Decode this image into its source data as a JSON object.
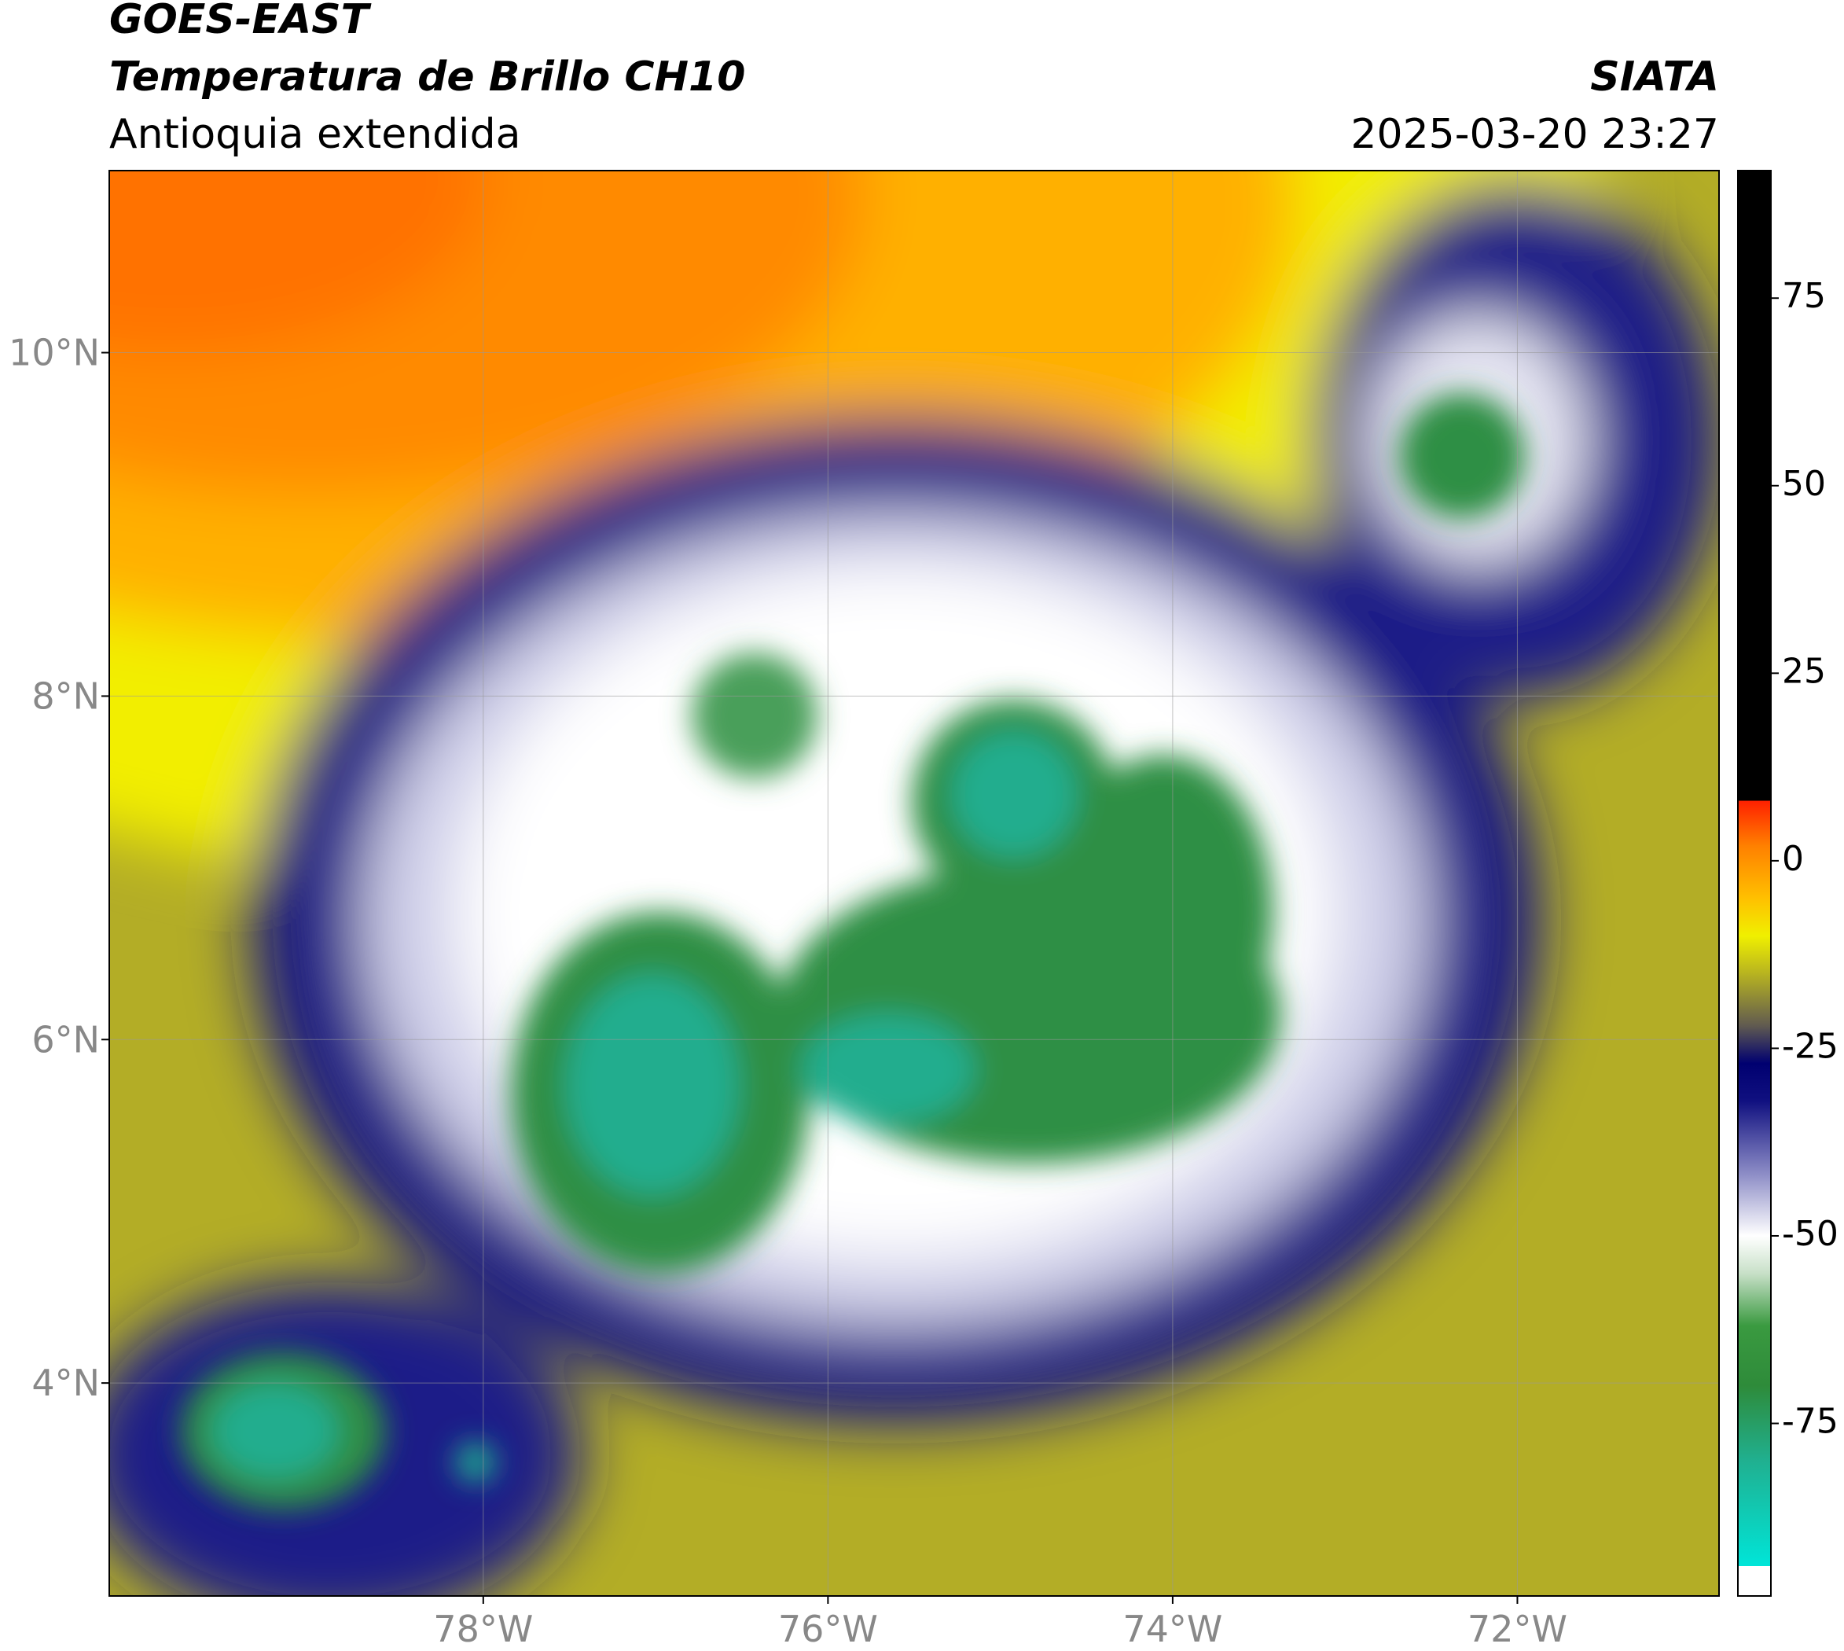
{
  "header": {
    "title": "GOES-EAST",
    "subtitle": "Temperatura de Brillo CH10",
    "region": "Antioquia extendida",
    "source": "SIATA",
    "datetime": "2025-03-20 23:27"
  },
  "map": {
    "lonlim": [
      -80.17,
      -70.83
    ],
    "latlim": [
      2.76,
      11.06
    ],
    "grid": true,
    "lonticks": [
      {
        "value": -78,
        "label": "78°W"
      },
      {
        "value": -76,
        "label": "76°W"
      },
      {
        "value": -74,
        "label": "74°W"
      },
      {
        "value": -72,
        "label": "72°W"
      }
    ],
    "latticks": [
      {
        "value": 10,
        "label": "10°N"
      },
      {
        "value": 8,
        "label": "8°N"
      },
      {
        "value": 6,
        "label": "6°N"
      },
      {
        "value": 4,
        "label": "4°N"
      }
    ]
  },
  "colorbar": {
    "lim": [
      -98,
      92
    ],
    "ticks": [
      75,
      50,
      25,
      0,
      -25,
      -50,
      -75
    ],
    "stops": [
      {
        "value": -98,
        "color": "#ffffff"
      },
      {
        "value": -94,
        "color": "#ffffff"
      },
      {
        "value": -94,
        "color": "#00e5d8"
      },
      {
        "value": -80,
        "color": "#20b090"
      },
      {
        "value": -70,
        "color": "#2e8b3a"
      },
      {
        "value": -62,
        "color": "#3a9a40"
      },
      {
        "value": -55,
        "color": "#c8e0c8"
      },
      {
        "value": -50,
        "color": "#ffffff"
      },
      {
        "value": -42,
        "color": "#9090c8"
      },
      {
        "value": -32,
        "color": "#101080"
      },
      {
        "value": -27,
        "color": "#000070"
      },
      {
        "value": -22,
        "color": "#605a50"
      },
      {
        "value": -15,
        "color": "#b8b420"
      },
      {
        "value": -10,
        "color": "#f0f000"
      },
      {
        "value": -5,
        "color": "#ffc000"
      },
      {
        "value": 2,
        "color": "#ff8000"
      },
      {
        "value": 8,
        "color": "#ff2000"
      },
      {
        "value": 8,
        "color": "#000000"
      },
      {
        "value": 92,
        "color": "#000000"
      }
    ]
  }
}
